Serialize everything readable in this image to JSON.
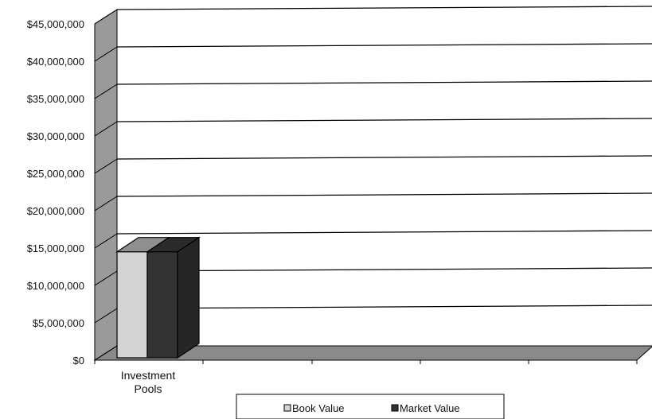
{
  "chart_data": {
    "type": "bar",
    "categories": [
      "Investment Pools"
    ],
    "category_lines": [
      "Investment",
      "Pools"
    ],
    "series": [
      {
        "name": "Book Value",
        "values": [
          14500000
        ],
        "color": "#d4d4d4"
      },
      {
        "name": "Market Value",
        "values": [
          14500000
        ],
        "color": "#333333"
      }
    ],
    "ylim": [
      0,
      45000000
    ],
    "yticks": [
      "$0",
      "$5,000,000",
      "$10,000,000",
      "$15,000,000",
      "$20,000,000",
      "$25,000,000",
      "$30,000,000",
      "$35,000,000",
      "$40,000,000",
      "$45,000,000"
    ],
    "grid": true,
    "legend_position": "bottom",
    "three_d": true,
    "colors": {
      "side_wall": "#9a9a9a",
      "floor": "#8a8a8a",
      "grid_line": "#000000"
    }
  }
}
